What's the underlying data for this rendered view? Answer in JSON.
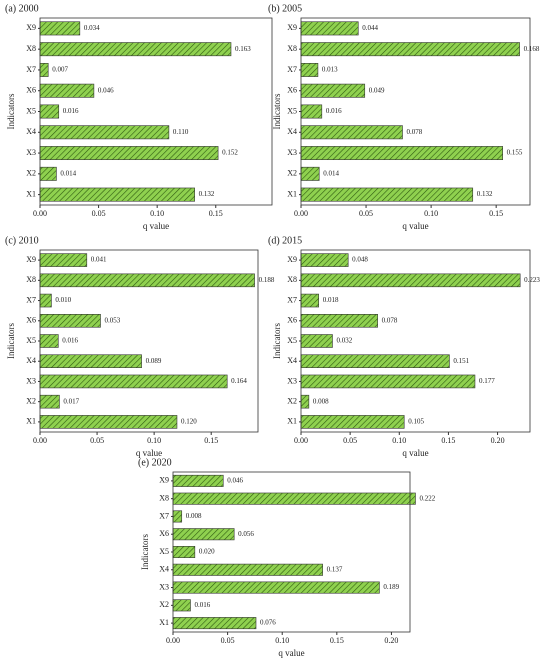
{
  "chart_data": [
    {
      "type": "bar",
      "orientation": "horizontal",
      "title": "(a) 2000",
      "xlabel": "q value",
      "ylabel": "Indicators",
      "color": "#8fd14f",
      "categories": [
        "X1",
        "X2",
        "X3",
        "X4",
        "X5",
        "X6",
        "X7",
        "X8",
        "X9"
      ],
      "values": [
        0.132,
        0.014,
        0.152,
        0.11,
        0.016,
        0.046,
        0.007,
        0.163,
        0.034
      ],
      "value_labels": [
        "0.132",
        "0.014",
        "0.152",
        "0.110",
        "0.016",
        "0.046",
        "0.007",
        "0.163",
        "0.034"
      ],
      "xlim": [
        0,
        0.198
      ],
      "xticks": [
        {
          "value": 0,
          "label": "0.00"
        },
        {
          "value": 0.05,
          "label": "0.05"
        },
        {
          "value": 0.1,
          "label": "0.10"
        },
        {
          "value": 0.15,
          "label": "0.15"
        }
      ]
    },
    {
      "type": "bar",
      "orientation": "horizontal",
      "title": "(b) 2005",
      "xlabel": "q value",
      "ylabel": "Indicators",
      "color": "#8fd14f",
      "categories": [
        "X1",
        "X2",
        "X3",
        "X4",
        "X5",
        "X6",
        "X7",
        "X8",
        "X9"
      ],
      "values": [
        0.132,
        0.014,
        0.155,
        0.078,
        0.016,
        0.049,
        0.013,
        0.168,
        0.044
      ],
      "value_labels": [
        "0.132",
        "0.014",
        "0.155",
        "0.078",
        "0.016",
        "0.049",
        "0.013",
        "0.168",
        "0.044"
      ],
      "xlim": [
        0,
        0.176
      ],
      "xticks": [
        {
          "value": 0,
          "label": "0.00"
        },
        {
          "value": 0.05,
          "label": "0.05"
        },
        {
          "value": 0.1,
          "label": "0.10"
        },
        {
          "value": 0.15,
          "label": "0.15"
        }
      ]
    },
    {
      "type": "bar",
      "orientation": "horizontal",
      "title": "(c) 2010",
      "xlabel": "q value",
      "ylabel": "Indicators",
      "color": "#8fd14f",
      "categories": [
        "X1",
        "X2",
        "X3",
        "X4",
        "X5",
        "X6",
        "X7",
        "X8",
        "X9"
      ],
      "values": [
        0.12,
        0.017,
        0.164,
        0.089,
        0.016,
        0.053,
        0.01,
        0.188,
        0.041
      ],
      "value_labels": [
        "0.120",
        "0.017",
        "0.164",
        "0.089",
        "0.016",
        "0.053",
        "0.010",
        "0.188",
        "0.041"
      ],
      "xlim": [
        0,
        0.191
      ],
      "xticks": [
        {
          "value": 0,
          "label": "0.00"
        },
        {
          "value": 0.05,
          "label": "0.05"
        },
        {
          "value": 0.1,
          "label": "0.10"
        },
        {
          "value": 0.15,
          "label": "0.15"
        }
      ]
    },
    {
      "type": "bar",
      "orientation": "horizontal",
      "title": "(d) 2015",
      "xlabel": "q value",
      "ylabel": "Indicators",
      "color": "#8fd14f",
      "categories": [
        "X1",
        "X2",
        "X3",
        "X4",
        "X5",
        "X6",
        "X7",
        "X8",
        "X9"
      ],
      "values": [
        0.105,
        0.008,
        0.177,
        0.151,
        0.032,
        0.078,
        0.018,
        0.223,
        0.048
      ],
      "value_labels": [
        "0.105",
        "0.008",
        "0.177",
        "0.151",
        "0.032",
        "0.078",
        "0.018",
        "0.223",
        "0.048"
      ],
      "xlim": [
        0,
        0.233
      ],
      "xticks": [
        {
          "value": 0,
          "label": "0.00"
        },
        {
          "value": 0.05,
          "label": "0.05"
        },
        {
          "value": 0.1,
          "label": "0.10"
        },
        {
          "value": 0.15,
          "label": "0.15"
        },
        {
          "value": 0.2,
          "label": "0.20"
        }
      ]
    },
    {
      "type": "bar",
      "orientation": "horizontal",
      "title": "(e) 2020",
      "xlabel": "q value",
      "ylabel": "Indicators",
      "color": "#8fd14f",
      "categories": [
        "X1",
        "X2",
        "X3",
        "X4",
        "X5",
        "X6",
        "X7",
        "X8",
        "X9"
      ],
      "values": [
        0.076,
        0.016,
        0.189,
        0.137,
        0.02,
        0.056,
        0.008,
        0.222,
        0.046
      ],
      "value_labels": [
        "0.076",
        "0.016",
        "0.189",
        "0.137",
        "0.020",
        "0.056",
        "0.008",
        "0.222",
        "0.046"
      ],
      "xlim": [
        0,
        0.217
      ],
      "xticks": [
        {
          "value": 0,
          "label": "0.00"
        },
        {
          "value": 0.05,
          "label": "0.05"
        },
        {
          "value": 0.1,
          "label": "0.10"
        },
        {
          "value": 0.15,
          "label": "0.15"
        },
        {
          "value": 0.2,
          "label": "0.20"
        }
      ]
    }
  ]
}
